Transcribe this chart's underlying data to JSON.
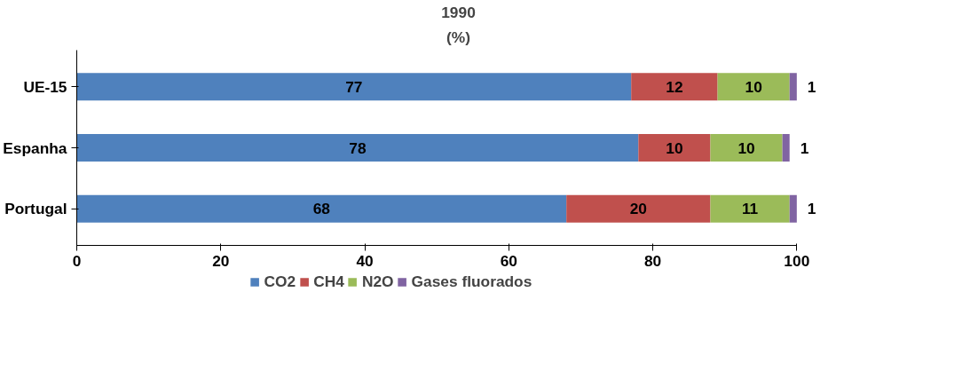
{
  "chart_data": {
    "type": "bar",
    "orientation": "horizontal",
    "stacked": true,
    "title": "1990",
    "subtitle": "(%)",
    "categories": [
      "UE-15",
      "Espanha",
      "Portugal"
    ],
    "series": [
      {
        "name": "CO2",
        "color": "#4f81bd",
        "values": [
          77,
          78,
          68
        ]
      },
      {
        "name": "CH4",
        "color": "#c0504d",
        "values": [
          12,
          10,
          20
        ]
      },
      {
        "name": "N2O",
        "color": "#9bbb59",
        "values": [
          10,
          10,
          11
        ]
      },
      {
        "name": "Gases fluorados",
        "color": "#8064a2",
        "values": [
          1,
          1,
          1
        ]
      }
    ],
    "xlim": [
      0,
      100
    ],
    "xticks": [
      0,
      20,
      40,
      60,
      80,
      100
    ],
    "data_labels": true,
    "legend": "bottom",
    "grid": false
  }
}
